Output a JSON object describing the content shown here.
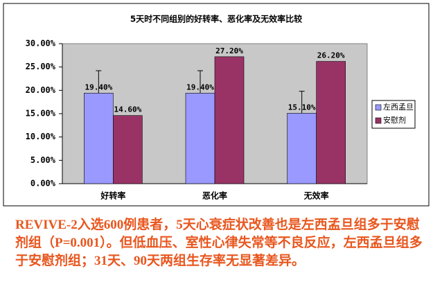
{
  "chart_data": {
    "type": "bar",
    "title": "5天时不同组别的好转率、恶化率及无效率比较",
    "categories": [
      "好转率",
      "恶化率",
      "无效率"
    ],
    "series": [
      {
        "name": "左西孟旦",
        "color": "#9999ff",
        "values": [
          19.4,
          19.4,
          15.1
        ],
        "value_labels": [
          "19.40%",
          "19.40%",
          "15.10%"
        ],
        "errors": [
          4.8,
          4.8,
          4.7
        ]
      },
      {
        "name": "安慰剂",
        "color": "#993366",
        "values": [
          14.6,
          27.2,
          26.2
        ],
        "value_labels": [
          "14.60%",
          "27.20%",
          "26.20%"
        ]
      }
    ],
    "ylim": [
      0,
      30
    ],
    "yticks": [
      {
        "value": 0,
        "label": "0.00%"
      },
      {
        "value": 5,
        "label": "5.00%"
      },
      {
        "value": 10,
        "label": "10.00%"
      },
      {
        "value": 15,
        "label": "15.00%"
      },
      {
        "value": 20,
        "label": "20.00%"
      },
      {
        "value": 25,
        "label": "25.00%"
      },
      {
        "value": 30,
        "label": "30.00%"
      }
    ],
    "legend": "right"
  },
  "caption": "REVIVE-2入选600例患者，5天心衰症状改善也是左西孟旦组多于安慰剂组（P=0.001）。但低血压、室性心律失常等不良反应，左西孟旦组多于安慰剂组；31天、90天两组生存率无显著差异。"
}
